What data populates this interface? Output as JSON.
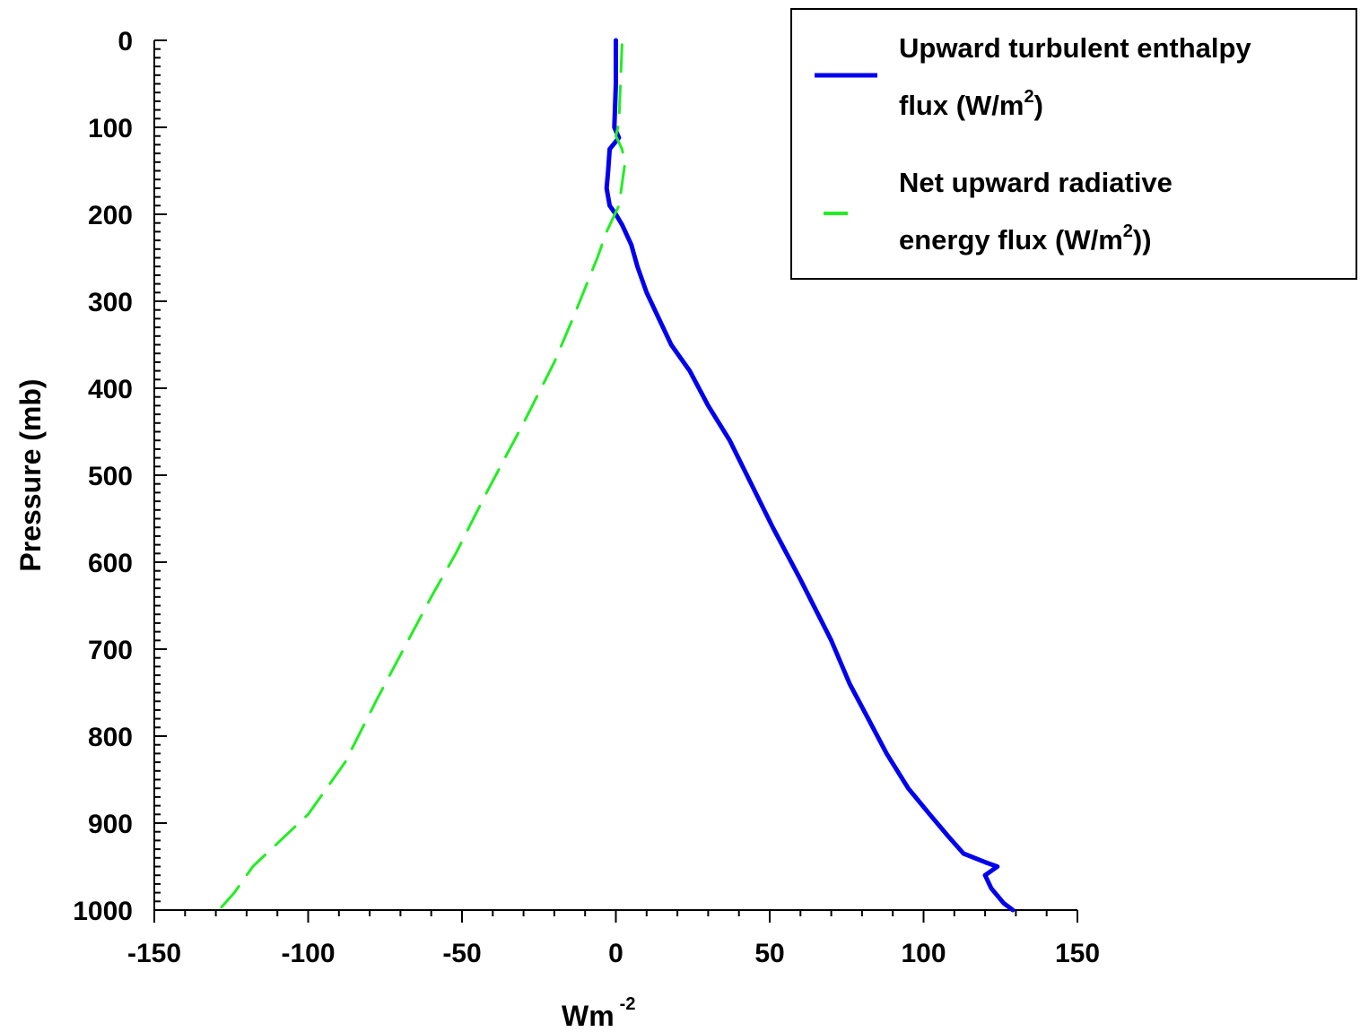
{
  "chart_data": {
    "type": "line",
    "orientation": "vertical-profile",
    "xlabel": {
      "base": "Wm",
      "sup": "-2"
    },
    "ylabel": "Pressure (mb)",
    "xlim": [
      -150,
      150
    ],
    "ylim": [
      0,
      1000
    ],
    "y_inverted": true,
    "grid": false,
    "legend_position": "top-right",
    "xticks": [
      -150,
      -100,
      -50,
      0,
      50,
      100,
      150
    ],
    "xtick_labels": [
      "-150",
      "-100",
      "-50",
      "0",
      "50",
      "100",
      "150"
    ],
    "yticks": [
      0,
      100,
      200,
      300,
      400,
      500,
      600,
      700,
      800,
      900,
      1000
    ],
    "ytick_labels": [
      "0",
      "100",
      "200",
      "300",
      "400",
      "500",
      "600",
      "700",
      "800",
      "900",
      "1000"
    ],
    "series": [
      {
        "name": "Upward turbulent enthalpy flux (W/m2)",
        "legend_line1": "Upward turbulent enthalpy",
        "legend_line2_base": "flux (W/m",
        "legend_line2_sup": "2",
        "legend_line2_tail": ")",
        "color": "#0000ee",
        "style": "solid",
        "points": [
          [
            0,
            0
          ],
          [
            0,
            50
          ],
          [
            -0.5,
            100
          ],
          [
            1,
            112
          ],
          [
            -2,
            125
          ],
          [
            -2.5,
            150
          ],
          [
            -3,
            170
          ],
          [
            -2,
            190
          ],
          [
            0,
            200
          ],
          [
            2,
            212
          ],
          [
            5,
            235
          ],
          [
            7,
            260
          ],
          [
            10,
            290
          ],
          [
            14,
            320
          ],
          [
            18,
            350
          ],
          [
            24,
            380
          ],
          [
            30,
            420
          ],
          [
            37,
            460
          ],
          [
            44,
            510
          ],
          [
            51,
            560
          ],
          [
            60,
            620
          ],
          [
            70,
            690
          ],
          [
            76,
            740
          ],
          [
            82,
            780
          ],
          [
            88,
            820
          ],
          [
            95,
            860
          ],
          [
            102,
            890
          ],
          [
            108,
            915
          ],
          [
            113,
            935
          ],
          [
            120,
            945
          ],
          [
            124,
            950
          ],
          [
            120,
            960
          ],
          [
            122,
            975
          ],
          [
            126,
            992
          ],
          [
            129,
            1000
          ]
        ]
      },
      {
        "name": "Net upward radiative energy flux (W/m2)",
        "legend_line1": "Net upward radiative",
        "legend_line2_base": "energy flux (W/m",
        "legend_line2_sup": "2",
        "legend_line2_tail": "))",
        "color": "#22ee22",
        "style": "dashed",
        "points": [
          [
            2,
            5
          ],
          [
            1.5,
            50
          ],
          [
            1,
            95
          ],
          [
            0,
            110
          ],
          [
            2,
            125
          ],
          [
            3,
            140
          ],
          [
            2,
            165
          ],
          [
            1,
            190
          ],
          [
            -3,
            220
          ],
          [
            -6,
            250
          ],
          [
            -10,
            285
          ],
          [
            -14,
            320
          ],
          [
            -20,
            370
          ],
          [
            -30,
            440
          ],
          [
            -42,
            520
          ],
          [
            -52,
            590
          ],
          [
            -60,
            640
          ],
          [
            -69,
            700
          ],
          [
            -78,
            760
          ],
          [
            -88,
            830
          ],
          [
            -100,
            890
          ],
          [
            -112,
            930
          ],
          [
            -118,
            950
          ],
          [
            -124,
            980
          ],
          [
            -129,
            1000
          ]
        ]
      }
    ]
  }
}
